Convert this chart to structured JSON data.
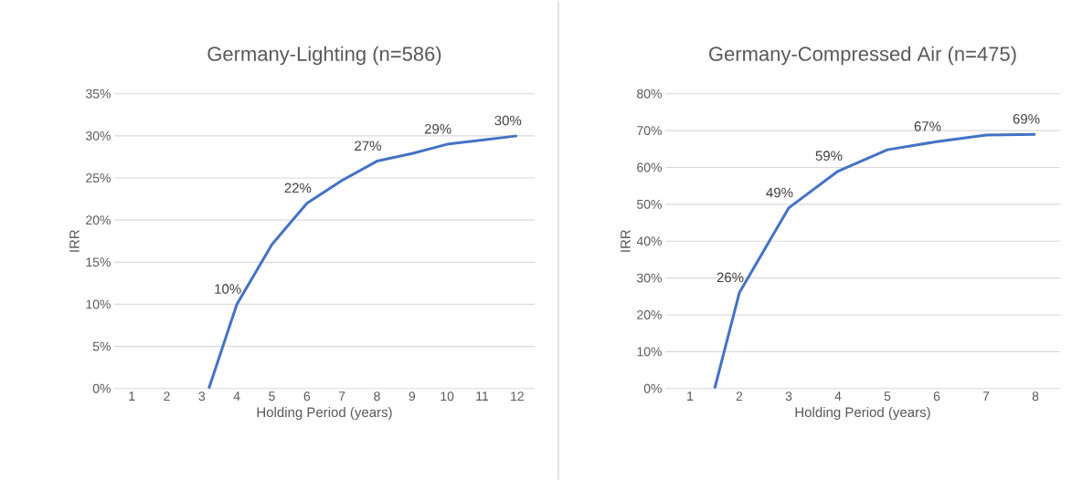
{
  "chart_data": [
    {
      "type": "line",
      "title": "Germany-Lighting (n=586)",
      "xlabel": "Holding Period (years)",
      "ylabel": "IRR",
      "color": "#4472c4",
      "grid": "y",
      "x": [
        3.2,
        4,
        5,
        6,
        7,
        8,
        9,
        10,
        11,
        12
      ],
      "values": [
        0,
        10,
        17.1,
        22,
        24.7,
        27,
        27.9,
        29,
        29.5,
        30
      ],
      "value_labels": [
        null,
        "10%",
        null,
        "22%",
        null,
        "27%",
        null,
        "29%",
        null,
        "30%"
      ],
      "xlim": [
        0.5,
        12.5
      ],
      "xticks": [
        1,
        2,
        3,
        4,
        5,
        6,
        7,
        8,
        9,
        10,
        11,
        12
      ],
      "ylim": [
        0,
        35
      ],
      "yticks": [
        {
          "value": 0,
          "label": "0%"
        },
        {
          "value": 5,
          "label": "5%"
        },
        {
          "value": 10,
          "label": "10%"
        },
        {
          "value": 15,
          "label": "15%"
        },
        {
          "value": 20,
          "label": "20%"
        },
        {
          "value": 25,
          "label": "25%"
        },
        {
          "value": 30,
          "label": "30%"
        },
        {
          "value": 35,
          "label": "35%"
        }
      ]
    },
    {
      "type": "line",
      "title": "Germany-Compressed Air (n=475)",
      "xlabel": "Holding Period (years)",
      "ylabel": "IRR",
      "color": "#4472c4",
      "grid": "y",
      "x": [
        1.5,
        2,
        3,
        4,
        5,
        6,
        7,
        8
      ],
      "values": [
        0,
        26,
        49,
        59,
        64.8,
        67,
        68.8,
        69
      ],
      "value_labels": [
        null,
        "26%",
        "49%",
        "59%",
        null,
        "67%",
        null,
        "69%"
      ],
      "xlim": [
        0.5,
        8.5
      ],
      "xticks": [
        1,
        2,
        3,
        4,
        5,
        6,
        7,
        8
      ],
      "ylim": [
        0,
        80
      ],
      "yticks": [
        {
          "value": 0,
          "label": "0%"
        },
        {
          "value": 10,
          "label": "10%"
        },
        {
          "value": 20,
          "label": "20%"
        },
        {
          "value": 30,
          "label": "30%"
        },
        {
          "value": 40,
          "label": "40%"
        },
        {
          "value": 50,
          "label": "50%"
        },
        {
          "value": 60,
          "label": "60%"
        },
        {
          "value": 70,
          "label": "70%"
        },
        {
          "value": 80,
          "label": "80%"
        }
      ]
    }
  ]
}
